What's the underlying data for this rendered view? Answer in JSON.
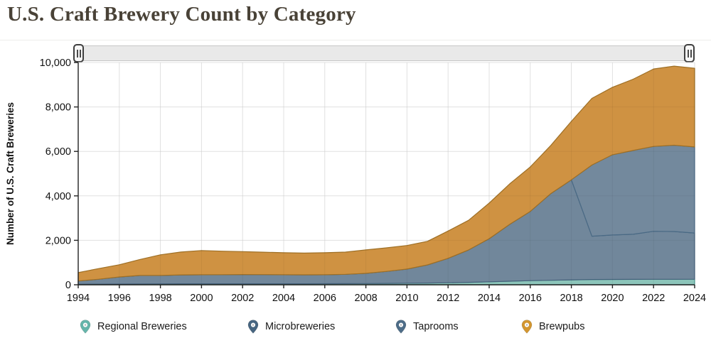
{
  "page": {
    "title": "U.S. Craft Brewery Count by Category"
  },
  "icons": {
    "range_handle": "grip-bars",
    "legend_marker": "map-pin"
  },
  "chart_data": {
    "type": "area",
    "stacked": true,
    "title": "U.S. Craft Brewery Count by Category",
    "xlabel": "",
    "ylabel": "Number of U.S. Craft Breweries",
    "xlim": [
      1994,
      2024
    ],
    "ylim": [
      0,
      10000
    ],
    "grid": true,
    "legend_position": "bottom",
    "colors": {
      "grid": "#ececec",
      "axis": "#222222",
      "tick_text": "#111111",
      "title_text": "#494237"
    },
    "xticks": [
      1994,
      1996,
      1998,
      2000,
      2002,
      2004,
      2006,
      2008,
      2010,
      2012,
      2014,
      2016,
      2018,
      2020,
      2022,
      2024
    ],
    "yticks": [
      {
        "value": 0,
        "label": "0"
      },
      {
        "value": 2000,
        "label": "2,000"
      },
      {
        "value": 4000,
        "label": "4,000"
      },
      {
        "value": 6000,
        "label": "6,000"
      },
      {
        "value": 8000,
        "label": "8,000"
      },
      {
        "value": 10000,
        "label": "10,000"
      }
    ],
    "x": [
      1994,
      1995,
      1996,
      1997,
      1998,
      1999,
      2000,
      2001,
      2002,
      2003,
      2004,
      2005,
      2006,
      2007,
      2008,
      2009,
      2010,
      2011,
      2012,
      2013,
      2014,
      2015,
      2016,
      2017,
      2018,
      2019,
      2020,
      2021,
      2022,
      2023,
      2024
    ],
    "series": [
      {
        "name": "Regional Breweries",
        "fill": "#8cc5ba",
        "edge": "#4f9e92",
        "pin": "#65b5aa",
        "values": [
          25,
          28,
          32,
          38,
          42,
          44,
          45,
          45,
          46,
          46,
          46,
          46,
          47,
          50,
          55,
          60,
          66,
          76,
          90,
          110,
          135,
          160,
          186,
          202,
          222,
          236,
          240,
          242,
          245,
          247,
          250
        ]
      },
      {
        "name": "Microbreweries",
        "fill": "#71879b",
        "edge": "#44607a",
        "pin": "#466580",
        "values": [
          145,
          220,
          320,
          380,
          375,
          400,
          405,
          410,
          415,
          410,
          405,
          400,
          405,
          420,
          460,
          540,
          640,
          820,
          1100,
          1460,
          1940,
          2560,
          3115,
          3900,
          4500,
          1950,
          2000,
          2030,
          2160,
          2150,
          2080
        ]
      },
      {
        "name": "Taprooms",
        "fill": "#73899d",
        "edge": "#4a6a85",
        "pin": "#4d6c87",
        "values": [
          0,
          0,
          0,
          0,
          0,
          0,
          0,
          0,
          0,
          0,
          0,
          0,
          0,
          0,
          0,
          0,
          0,
          0,
          0,
          0,
          0,
          0,
          0,
          0,
          0,
          3200,
          3610,
          3770,
          3820,
          3880,
          3870
        ]
      },
      {
        "name": "Brewpubs",
        "fill": "#cf9242",
        "edge": "#9e6f25",
        "pin": "#d3962f",
        "values": [
          375,
          480,
          550,
          720,
          930,
          1030,
          1090,
          1055,
          1030,
          1010,
          990,
          980,
          990,
          1000,
          1055,
          1060,
          1060,
          1060,
          1230,
          1330,
          1600,
          1820,
          2000,
          2165,
          2630,
          3000,
          3034,
          3205,
          3484,
          3560,
          3540
        ]
      }
    ]
  }
}
